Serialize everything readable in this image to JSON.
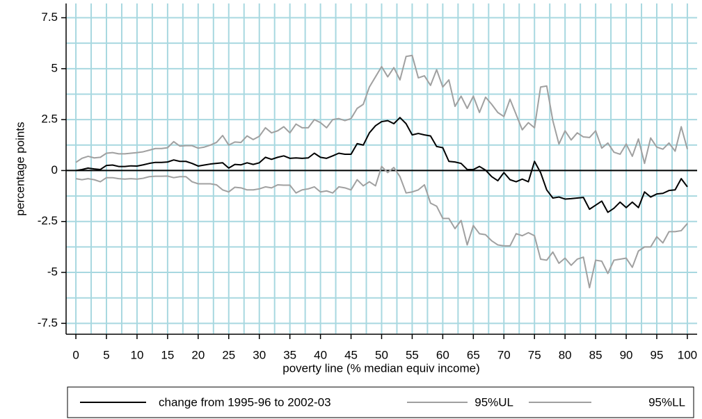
{
  "chart_data": {
    "type": "line",
    "x_label": "poverty line (% median equiv income)",
    "y_label": "percentage points",
    "x": [
      0,
      1,
      2,
      3,
      4,
      5,
      6,
      7,
      8,
      9,
      10,
      11,
      12,
      13,
      14,
      15,
      16,
      17,
      18,
      19,
      20,
      21,
      22,
      23,
      24,
      25,
      26,
      27,
      28,
      29,
      30,
      31,
      32,
      33,
      34,
      35,
      36,
      37,
      38,
      39,
      40,
      41,
      42,
      43,
      44,
      45,
      46,
      47,
      48,
      49,
      50,
      51,
      52,
      53,
      54,
      55,
      56,
      57,
      58,
      59,
      60,
      61,
      62,
      63,
      64,
      65,
      66,
      67,
      68,
      69,
      70,
      71,
      72,
      73,
      74,
      75,
      76,
      77,
      78,
      79,
      80,
      81,
      82,
      83,
      84,
      85,
      86,
      87,
      88,
      89,
      90,
      91,
      92,
      93,
      94,
      95,
      96,
      97,
      98,
      99,
      100
    ],
    "series": [
      {
        "name": "change from 1995-96 to 2002-03",
        "color": "#000000",
        "values": [
          0,
          0.05,
          0.12,
          0.08,
          0.05,
          0.25,
          0.27,
          0.2,
          0.2,
          0.23,
          0.22,
          0.28,
          0.35,
          0.4,
          0.4,
          0.42,
          0.52,
          0.45,
          0.45,
          0.35,
          0.22,
          0.27,
          0.32,
          0.35,
          0.38,
          0.12,
          0.3,
          0.28,
          0.38,
          0.3,
          0.38,
          0.65,
          0.55,
          0.65,
          0.72,
          0.6,
          0.62,
          0.6,
          0.62,
          0.85,
          0.65,
          0.6,
          0.72,
          0.85,
          0.8,
          0.8,
          1.32,
          1.25,
          1.85,
          2.2,
          2.4,
          2.45,
          2.3,
          2.6,
          2.3,
          1.75,
          1.82,
          1.75,
          1.7,
          1.18,
          1.12,
          0.45,
          0.42,
          0.35,
          0.05,
          0.05,
          0.2,
          0.02,
          -0.3,
          -0.5,
          -0.1,
          -0.45,
          -0.55,
          -0.42,
          -0.55,
          0.45,
          -0.1,
          -0.95,
          -1.35,
          -1.3,
          -1.4,
          -1.38,
          -1.35,
          -1.32,
          -1.9,
          -1.7,
          -1.5,
          -2.05,
          -1.85,
          -1.55,
          -1.82,
          -1.55,
          -1.82,
          -1.05,
          -1.3,
          -1.15,
          -1.12,
          -0.98,
          -0.95,
          -0.4,
          -0.8
        ]
      },
      {
        "name": "95%UL",
        "color": "#a0a0a0",
        "values": [
          0.4,
          0.6,
          0.7,
          0.62,
          0.65,
          0.85,
          0.88,
          0.82,
          0.82,
          0.85,
          0.88,
          0.92,
          1.0,
          1.08,
          1.08,
          1.12,
          1.42,
          1.2,
          1.22,
          1.22,
          1.1,
          1.15,
          1.25,
          1.38,
          1.72,
          1.25,
          1.4,
          1.38,
          1.7,
          1.52,
          1.68,
          2.1,
          1.85,
          1.95,
          2.15,
          1.85,
          2.28,
          2.1,
          2.1,
          2.5,
          2.35,
          2.1,
          2.5,
          2.55,
          2.45,
          2.55,
          3.05,
          3.25,
          4.1,
          4.6,
          5.1,
          4.6,
          5.05,
          4.45,
          5.6,
          5.65,
          4.55,
          4.65,
          4.18,
          4.95,
          4.1,
          4.45,
          3.15,
          3.65,
          3.05,
          3.65,
          2.85,
          3.6,
          3.25,
          2.85,
          2.65,
          3.5,
          2.75,
          2.0,
          2.35,
          2.1,
          4.1,
          4.15,
          2.45,
          1.3,
          1.95,
          1.5,
          1.85,
          1.65,
          1.62,
          1.95,
          1.1,
          1.35,
          0.9,
          0.8,
          1.3,
          0.7,
          1.55,
          0.35,
          1.6,
          1.15,
          1.05,
          1.35,
          0.95,
          2.15,
          1.05
        ]
      },
      {
        "name": "95%LL",
        "color": "#a0a0a0",
        "values": [
          -0.4,
          -0.45,
          -0.4,
          -0.45,
          -0.55,
          -0.35,
          -0.35,
          -0.4,
          -0.42,
          -0.4,
          -0.42,
          -0.38,
          -0.3,
          -0.28,
          -0.28,
          -0.27,
          -0.35,
          -0.3,
          -0.3,
          -0.55,
          -0.65,
          -0.65,
          -0.65,
          -0.7,
          -0.95,
          -1.05,
          -0.82,
          -0.85,
          -0.95,
          -0.95,
          -0.9,
          -0.8,
          -0.85,
          -0.7,
          -0.72,
          -0.72,
          -1.1,
          -0.95,
          -0.9,
          -0.8,
          -1.05,
          -1.0,
          -1.1,
          -0.8,
          -0.85,
          -0.95,
          -0.45,
          -0.75,
          -0.55,
          -0.75,
          0.2,
          -0.1,
          0.15,
          -0.3,
          -1.1,
          -1.05,
          -0.95,
          -0.7,
          -1.6,
          -1.75,
          -2.35,
          -2.35,
          -2.85,
          -2.45,
          -3.65,
          -2.7,
          -3.1,
          -3.15,
          -3.45,
          -3.65,
          -3.7,
          -3.7,
          -3.1,
          -3.2,
          -3.05,
          -3.2,
          -4.35,
          -4.4,
          -4.0,
          -4.55,
          -4.3,
          -4.65,
          -4.35,
          -4.25,
          -5.75,
          -4.4,
          -4.45,
          -5.05,
          -4.4,
          -4.35,
          -4.3,
          -4.75,
          -3.95,
          -3.75,
          -3.75,
          -3.25,
          -3.55,
          -3.0,
          -3.0,
          -2.95,
          -2.6
        ]
      }
    ],
    "xlim": [
      -1.6,
      101.6
    ],
    "ylim": [
      -8,
      8.2
    ],
    "xticks": [
      0,
      5,
      10,
      15,
      20,
      25,
      30,
      35,
      40,
      45,
      50,
      55,
      60,
      65,
      70,
      75,
      80,
      85,
      90,
      95,
      100
    ],
    "yticks": [
      7.5,
      5,
      2.5,
      0,
      -2.5,
      -5,
      -7.5
    ],
    "xgrid": [
      0,
      2.5,
      5,
      7.5,
      10,
      12.5,
      15,
      17.5,
      20,
      22.5,
      25,
      27.5,
      30,
      32.5,
      35,
      37.5,
      40,
      42.5,
      45,
      47.5,
      50,
      52.5,
      55,
      57.5,
      60,
      62.5,
      65,
      67.5,
      70,
      72.5,
      75,
      77.5,
      80,
      82.5,
      85,
      87.5,
      90,
      92.5,
      95,
      97.5,
      100
    ],
    "ygrid": [
      -7.5,
      -6.25,
      -5,
      -3.75,
      -2.5,
      -1.25,
      0,
      1.25,
      2.5,
      3.75,
      5,
      6.25,
      7.5
    ],
    "grid_color": "#a8d8e0",
    "reference_line": 0,
    "legend": "bottom"
  }
}
